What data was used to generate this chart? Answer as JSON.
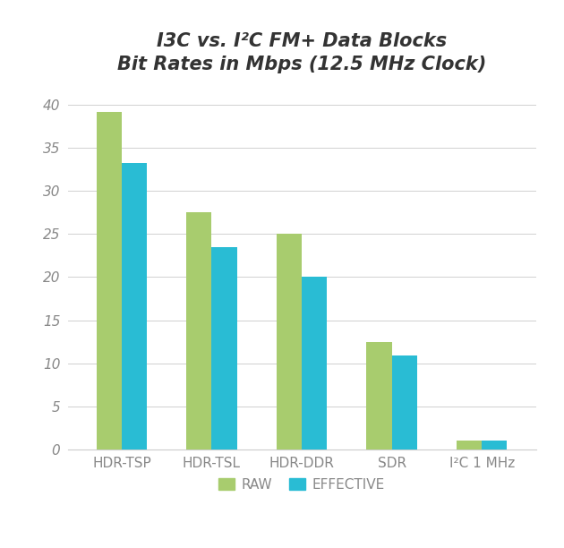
{
  "title_line1": "I3C vs. I²C FM+ Data Blocks",
  "title_line2": "Bit Rates in Mbps (12.5 MHz Clock)",
  "categories": [
    "HDR-TSP",
    "HDR-TSL",
    "HDR-DDR",
    "SDR",
    "I²C 1 MHz"
  ],
  "raw_values": [
    39.2,
    27.5,
    25.0,
    12.5,
    1.0
  ],
  "effective_values": [
    33.3,
    23.5,
    20.0,
    10.9,
    1.0
  ],
  "raw_color": "#a8cc6e",
  "effective_color": "#29bcd4",
  "ylim": [
    0,
    42
  ],
  "yticks": [
    0,
    5,
    10,
    15,
    20,
    25,
    30,
    35,
    40
  ],
  "bar_width": 0.28,
  "legend_labels": [
    "RAW",
    "EFFECTIVE"
  ],
  "background_color": "#ffffff",
  "grid_color": "#d0d0d0",
  "title_fontsize": 15,
  "axis_tick_fontsize": 11,
  "legend_fontsize": 11,
  "tick_color": "#888888",
  "label_color": "#888888"
}
